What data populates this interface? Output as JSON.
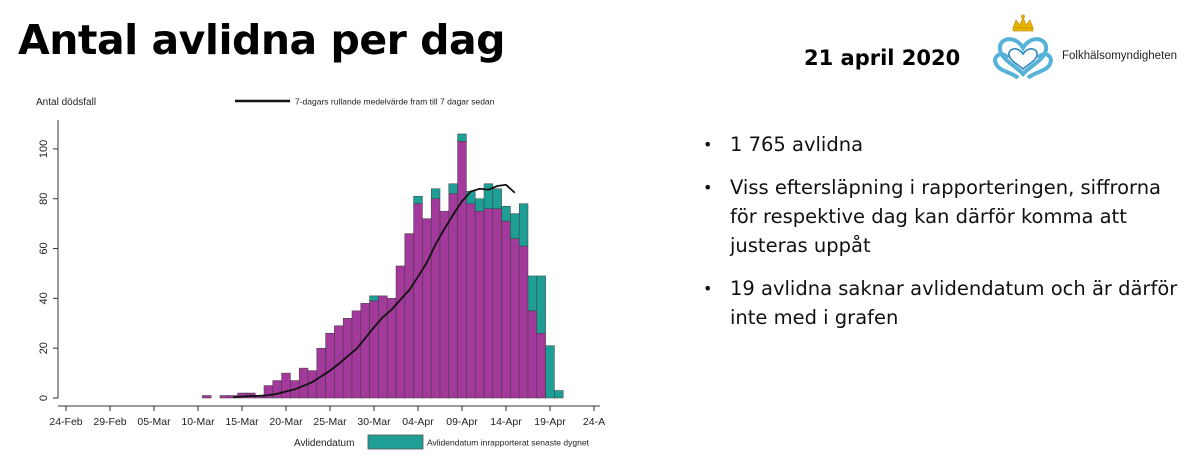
{
  "slide": {
    "title": "Antal avlidna per dag",
    "date": "21 april 2020",
    "organization": "Folkhälsomyndigheten",
    "logo_icon": "crown-heart-logo-icon",
    "bullets": [
      "1 765 avlidna",
      "Viss eftersläpning i rapporteringen, siffrorna för respektive dag kan därför komma att justeras uppåt",
      "19 avlidna saknar avlidendatum och är därför inte med i grafen"
    ]
  },
  "chart_data": {
    "type": "bar",
    "stacked": true,
    "ylabel": "Antal dödsfall",
    "xlabel": "Avlidendatum",
    "ylim": [
      0,
      110
    ],
    "yticks": [
      0,
      20,
      40,
      60,
      80,
      100
    ],
    "xticks": [
      "24-Feb",
      "29-Feb",
      "05-Mar",
      "10-Mar",
      "15-Mar",
      "20-Mar",
      "25-Mar",
      "30-Mar",
      "04-Apr",
      "09-Apr",
      "14-Apr",
      "19-Apr",
      "24-A"
    ],
    "xtick_offsets": [
      0,
      5,
      10,
      15,
      20,
      25,
      30,
      35,
      40,
      45,
      50,
      55,
      60
    ],
    "day_range": [
      0,
      60
    ],
    "bar_start_offset": 16,
    "categories": [
      "11-Mar",
      "12-Mar",
      "13-Mar",
      "14-Mar",
      "15-Mar",
      "16-Mar",
      "17-Mar",
      "18-Mar",
      "19-Mar",
      "20-Mar",
      "21-Mar",
      "22-Mar",
      "23-Mar",
      "24-Mar",
      "25-Mar",
      "26-Mar",
      "27-Mar",
      "28-Mar",
      "29-Mar",
      "30-Mar",
      "31-Mar",
      "01-Apr",
      "02-Apr",
      "03-Apr",
      "04-Apr",
      "05-Apr",
      "06-Apr",
      "07-Apr",
      "08-Apr",
      "09-Apr",
      "10-Apr",
      "11-Apr",
      "12-Apr",
      "13-Apr",
      "14-Apr",
      "15-Apr",
      "16-Apr",
      "17-Apr",
      "18-Apr",
      "19-Apr",
      "20-Apr"
    ],
    "series": [
      {
        "name": "Avlidendatum",
        "color": "#a3399b",
        "values": [
          1,
          0,
          1,
          1,
          2,
          2,
          1,
          5,
          7,
          10,
          7,
          12,
          11,
          20,
          26,
          29,
          32,
          35,
          38,
          39,
          41,
          40,
          53,
          66,
          78,
          72,
          80,
          75,
          82,
          103,
          78,
          75,
          76,
          76,
          71,
          64,
          61,
          35,
          26,
          0,
          0
        ]
      },
      {
        "name": "Avlidendatum inrapporterat senaste dygnet",
        "color": "#1f9e96",
        "values": [
          0,
          0,
          0,
          0,
          0,
          0,
          0,
          0,
          0,
          0,
          0,
          0,
          0,
          0,
          0,
          0,
          0,
          0,
          0,
          2,
          0,
          0,
          0,
          0,
          3,
          0,
          4,
          0,
          4,
          3,
          5,
          5,
          10,
          8,
          6,
          10,
          17,
          14,
          23,
          21,
          3
        ]
      }
    ],
    "rolling_average": {
      "name": "7-dagars rullande medelvärde fram till 7 dagar sedan",
      "color": "#111111",
      "values": [
        null,
        null,
        null,
        0.3,
        0.6,
        0.8,
        0.9,
        1.1,
        1.7,
        2.6,
        3.5,
        4.9,
        6.4,
        8.7,
        11,
        13.7,
        16.8,
        19.7,
        24,
        28.4,
        32.4,
        35.5,
        39.5,
        43.3,
        48.7,
        54.3,
        61.7,
        67.9,
        73.6,
        79,
        82.9,
        84,
        83.6,
        85.1,
        85.6,
        82.4,
        null,
        null,
        null,
        null,
        null
      ]
    },
    "legend_placement": "top-center and bottom-center",
    "grid": false
  }
}
